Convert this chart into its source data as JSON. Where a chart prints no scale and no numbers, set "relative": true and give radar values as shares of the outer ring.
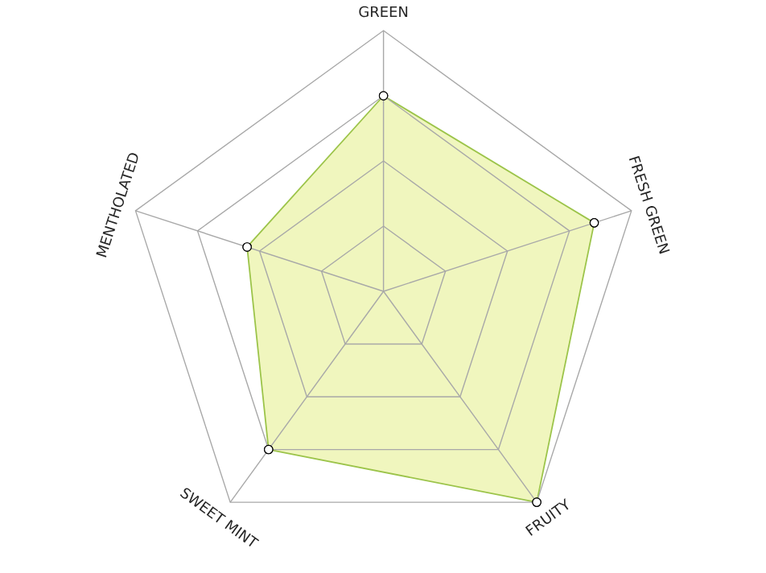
{
  "chart_data": {
    "type": "radar",
    "relative": true,
    "grid": true,
    "marker": "circle",
    "categories": [
      "GREEN",
      "FRESH GREEN",
      "FRUITY",
      "SWEET MINT",
      "MENTHOLATED"
    ],
    "series": [
      {
        "color": "#9cc44a",
        "values": [
          0.75,
          0.85,
          1.0,
          0.75,
          0.55
        ]
      }
    ]
  }
}
